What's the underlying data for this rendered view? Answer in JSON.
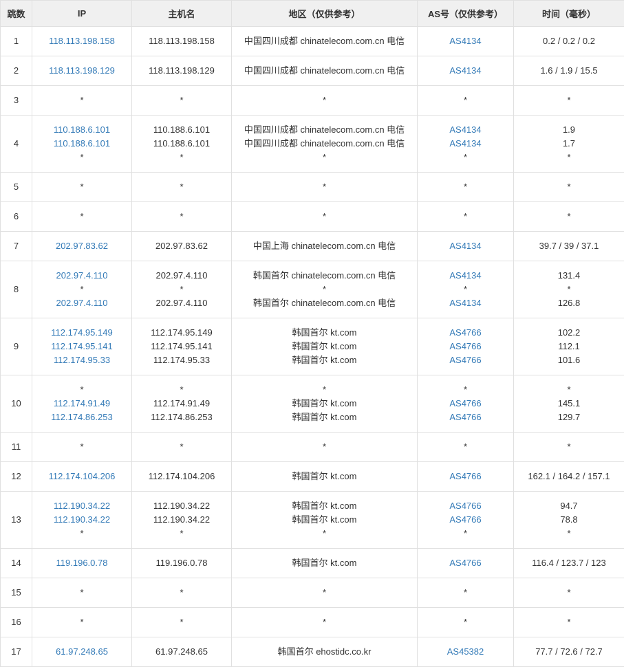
{
  "columns": [
    {
      "key": "hop",
      "label": "跳数"
    },
    {
      "key": "ip",
      "label": "IP"
    },
    {
      "key": "host",
      "label": "主机名"
    },
    {
      "key": "region",
      "label": "地区（仅供参考）"
    },
    {
      "key": "as",
      "label": "AS号（仅供参考）"
    },
    {
      "key": "time",
      "label": "时间（毫秒）"
    }
  ],
  "link_color": "#337ab7",
  "border_color": "#e0e0e0",
  "header_bg": "#f0f0f0",
  "rows": [
    {
      "hop": "1",
      "lines": [
        {
          "ip": "118.113.198.158",
          "host": "118.113.198.158",
          "region": "中国四川成都 chinatelecom.com.cn 电信",
          "as": "AS4134",
          "time": "0.2 / 0.2 / 0.2"
        }
      ]
    },
    {
      "hop": "2",
      "lines": [
        {
          "ip": "118.113.198.129",
          "host": "118.113.198.129",
          "region": "中国四川成都 chinatelecom.com.cn 电信",
          "as": "AS4134",
          "time": "1.6 / 1.9 / 15.5"
        }
      ]
    },
    {
      "hop": "3",
      "lines": [
        {
          "ip": "*",
          "host": "*",
          "region": "*",
          "as": "*",
          "time": "*"
        }
      ]
    },
    {
      "hop": "4",
      "lines": [
        {
          "ip": "110.188.6.101",
          "host": "110.188.6.101",
          "region": "中国四川成都 chinatelecom.com.cn 电信",
          "as": "AS4134",
          "time": "1.9"
        },
        {
          "ip": "110.188.6.101",
          "host": "110.188.6.101",
          "region": "中国四川成都 chinatelecom.com.cn 电信",
          "as": "AS4134",
          "time": "1.7"
        },
        {
          "ip": "*",
          "host": "*",
          "region": "*",
          "as": "*",
          "time": "*"
        }
      ]
    },
    {
      "hop": "5",
      "lines": [
        {
          "ip": "*",
          "host": "*",
          "region": "*",
          "as": "*",
          "time": "*"
        }
      ]
    },
    {
      "hop": "6",
      "lines": [
        {
          "ip": "*",
          "host": "*",
          "region": "*",
          "as": "*",
          "time": "*"
        }
      ]
    },
    {
      "hop": "7",
      "lines": [
        {
          "ip": "202.97.83.62",
          "host": "202.97.83.62",
          "region": "中国上海 chinatelecom.com.cn 电信",
          "as": "AS4134",
          "time": "39.7 / 39 / 37.1"
        }
      ]
    },
    {
      "hop": "8",
      "lines": [
        {
          "ip": "202.97.4.110",
          "host": "202.97.4.110",
          "region": "韩国首尔 chinatelecom.com.cn 电信",
          "as": "AS4134",
          "time": "131.4"
        },
        {
          "ip": "*",
          "host": "*",
          "region": "*",
          "as": "*",
          "time": "*"
        },
        {
          "ip": "202.97.4.110",
          "host": "202.97.4.110",
          "region": "韩国首尔 chinatelecom.com.cn 电信",
          "as": "AS4134",
          "time": "126.8"
        }
      ]
    },
    {
      "hop": "9",
      "lines": [
        {
          "ip": "112.174.95.149",
          "host": "112.174.95.149",
          "region": "韩国首尔 kt.com",
          "as": "AS4766",
          "time": "102.2"
        },
        {
          "ip": "112.174.95.141",
          "host": "112.174.95.141",
          "region": "韩国首尔 kt.com",
          "as": "AS4766",
          "time": "112.1"
        },
        {
          "ip": "112.174.95.33",
          "host": "112.174.95.33",
          "region": "韩国首尔 kt.com",
          "as": "AS4766",
          "time": "101.6"
        }
      ]
    },
    {
      "hop": "10",
      "lines": [
        {
          "ip": "*",
          "host": "*",
          "region": "*",
          "as": "*",
          "time": "*"
        },
        {
          "ip": "112.174.91.49",
          "host": "112.174.91.49",
          "region": "韩国首尔 kt.com",
          "as": "AS4766",
          "time": "145.1"
        },
        {
          "ip": "112.174.86.253",
          "host": "112.174.86.253",
          "region": "韩国首尔 kt.com",
          "as": "AS4766",
          "time": "129.7"
        }
      ]
    },
    {
      "hop": "11",
      "lines": [
        {
          "ip": "*",
          "host": "*",
          "region": "*",
          "as": "*",
          "time": "*"
        }
      ]
    },
    {
      "hop": "12",
      "lines": [
        {
          "ip": "112.174.104.206",
          "host": "112.174.104.206",
          "region": "韩国首尔 kt.com",
          "as": "AS4766",
          "time": "162.1 / 164.2 / 157.1"
        }
      ]
    },
    {
      "hop": "13",
      "lines": [
        {
          "ip": "112.190.34.22",
          "host": "112.190.34.22",
          "region": "韩国首尔 kt.com",
          "as": "AS4766",
          "time": "94.7"
        },
        {
          "ip": "112.190.34.22",
          "host": "112.190.34.22",
          "region": "韩国首尔 kt.com",
          "as": "AS4766",
          "time": "78.8"
        },
        {
          "ip": "*",
          "host": "*",
          "region": "*",
          "as": "*",
          "time": "*"
        }
      ]
    },
    {
      "hop": "14",
      "lines": [
        {
          "ip": "119.196.0.78",
          "host": "119.196.0.78",
          "region": "韩国首尔 kt.com",
          "as": "AS4766",
          "time": "116.4 / 123.7 / 123"
        }
      ]
    },
    {
      "hop": "15",
      "lines": [
        {
          "ip": "*",
          "host": "*",
          "region": "*",
          "as": "*",
          "time": "*"
        }
      ]
    },
    {
      "hop": "16",
      "lines": [
        {
          "ip": "*",
          "host": "*",
          "region": "*",
          "as": "*",
          "time": "*"
        }
      ]
    },
    {
      "hop": "17",
      "lines": [
        {
          "ip": "61.97.248.65",
          "host": "61.97.248.65",
          "region": "韩国首尔 ehostidc.co.kr",
          "as": "AS45382",
          "time": "77.7 / 72.6 / 72.7"
        }
      ]
    }
  ]
}
